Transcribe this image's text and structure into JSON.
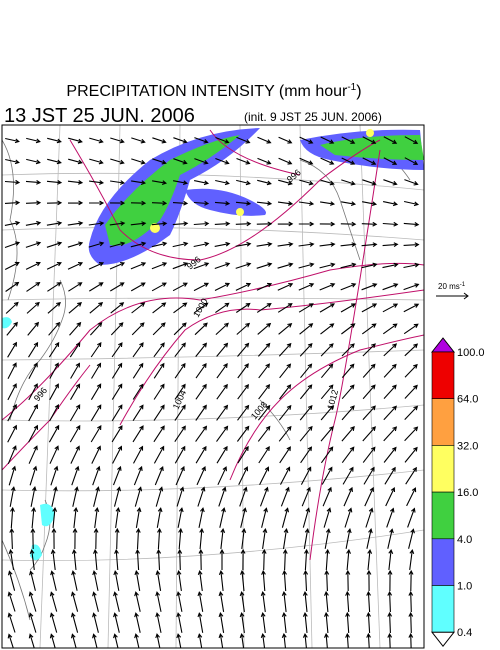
{
  "header": {
    "title": "PRECIPITATION INTENSITY (mm hour",
    "title_superscript": "-1",
    "title_close": ")",
    "valid_time": "13 JST 25 JUN. 2006",
    "init_time": "(init. 9 JST 25 JUN. 2006)"
  },
  "vector_scale": {
    "label": "20 ms",
    "superscript": "-1"
  },
  "colorbar": {
    "labels": [
      "100.0",
      "64.0",
      "32.0",
      "16.0",
      "4.0",
      "1.0",
      "0.4"
    ],
    "colors": [
      "#ee0000",
      "#ffa040",
      "#ffff60",
      "#40d040",
      "#6060ff",
      "#60ffff"
    ],
    "over_color": "#b000e0",
    "under_color": "#ffffff"
  },
  "contour_labels": [
    "996",
    "996",
    "1000",
    "1004",
    "1008",
    "1012",
    "996"
  ]
}
